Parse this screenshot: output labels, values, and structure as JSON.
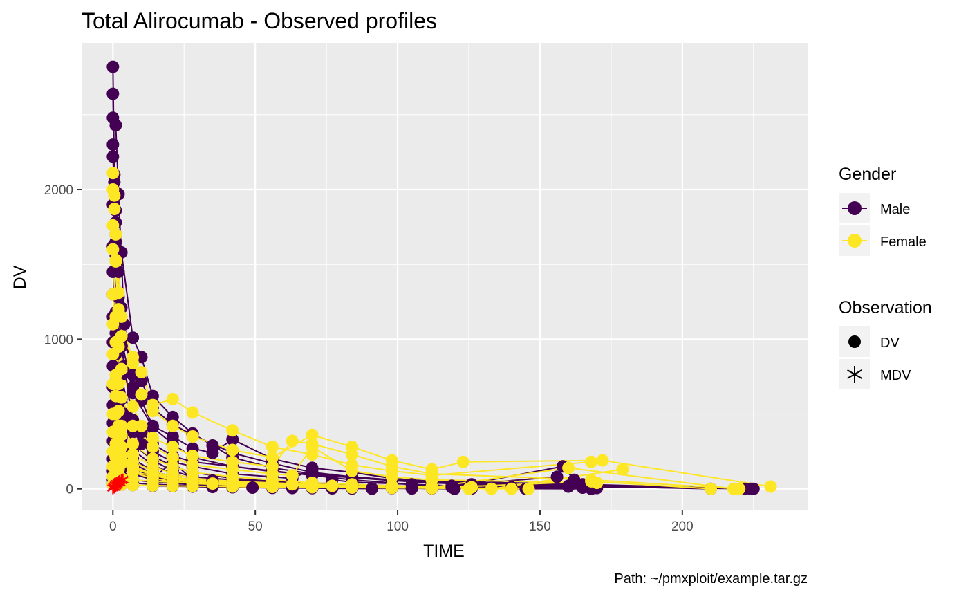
{
  "chart_data": {
    "type": "line",
    "title": "Total Alirocumab - Observed profiles",
    "xlabel": "TIME",
    "ylabel": "DV",
    "caption": "Path: ~/pmxploit/example.tar.gz",
    "xlim": [
      -11,
      244
    ],
    "ylim": [
      -140,
      2980
    ],
    "x_ticks": [
      0,
      50,
      100,
      150,
      200
    ],
    "y_ticks": [
      0,
      1000,
      2000
    ],
    "x_tick_labels": [
      "0",
      "50",
      "100",
      "150",
      "200"
    ],
    "y_tick_labels": [
      "0",
      "1000",
      "2000"
    ],
    "grid": true,
    "legend_position": "right",
    "colors": {
      "Male": "#440154",
      "Female": "#fde725",
      "MDV": "#ff0000"
    },
    "legend": {
      "color_title": "Gender",
      "color_entries": [
        "Male",
        "Female"
      ],
      "shape_title": "Observation",
      "shape_entries": [
        "DV",
        "MDV"
      ]
    },
    "series": [
      {
        "gender": "Male",
        "x": [
          0,
          0.5,
          1,
          3,
          7,
          14,
          21,
          28,
          42,
          56,
          70,
          84,
          98,
          112,
          168,
          224
        ],
        "y": [
          2820,
          2100,
          1650,
          1000,
          640,
          410,
          300,
          210,
          150,
          115,
          95,
          75,
          55,
          40,
          22,
          0
        ]
      },
      {
        "gender": "Male",
        "x": [
          0,
          0.5,
          1,
          3,
          7,
          10,
          14,
          21,
          28,
          35,
          42,
          56,
          70,
          84,
          98,
          112,
          165,
          222
        ],
        "y": [
          2640,
          2050,
          1780,
          1580,
          1010,
          880,
          620,
          480,
          370,
          290,
          210,
          140,
          100,
          80,
          60,
          45,
          30,
          0
        ]
      },
      {
        "gender": "Male",
        "x": [
          0,
          1,
          2,
          4,
          7,
          10,
          14,
          21,
          28,
          42,
          56,
          70,
          84,
          98,
          112,
          126,
          160,
          210
        ],
        "y": [
          2480,
          2430,
          1970,
          1100,
          760,
          720,
          540,
          430,
          360,
          240,
          170,
          110,
          80,
          60,
          40,
          30,
          20,
          0
        ]
      },
      {
        "gender": "Male",
        "x": [
          0,
          1,
          2,
          3,
          7,
          10,
          14,
          21,
          28,
          35,
          42,
          56,
          70,
          84,
          98,
          112,
          168
        ],
        "y": [
          2300,
          1860,
          1450,
          1210,
          680,
          590,
          420,
          350,
          270,
          240,
          330,
          200,
          140,
          110,
          70,
          50,
          30
        ]
      },
      {
        "gender": "Male",
        "x": [
          0,
          1,
          2,
          3,
          7,
          10,
          14,
          21,
          28,
          42,
          56,
          70,
          84,
          98,
          112,
          140,
          170
        ],
        "y": [
          2220,
          1700,
          1280,
          950,
          460,
          380,
          300,
          220,
          180,
          150,
          120,
          90,
          60,
          40,
          20,
          10,
          5
        ]
      },
      {
        "gender": "Male",
        "x": [
          0,
          1,
          2,
          4,
          7,
          10,
          14,
          21,
          28,
          42,
          56,
          63,
          70,
          77,
          84,
          105,
          119,
          160,
          225
        ],
        "y": [
          1900,
          1560,
          1200,
          820,
          420,
          300,
          250,
          180,
          150,
          100,
          80,
          70,
          130,
          60,
          45,
          30,
          20,
          15,
          0
        ]
      },
      {
        "gender": "Male",
        "x": [
          0,
          1,
          2,
          3,
          7,
          14,
          21,
          28,
          42,
          56,
          70,
          84,
          98,
          112,
          126,
          165
        ],
        "y": [
          1620,
          1300,
          1020,
          760,
          380,
          220,
          150,
          110,
          70,
          50,
          40,
          30,
          20,
          15,
          10,
          8
        ]
      },
      {
        "gender": "Male",
        "x": [
          0,
          1,
          2,
          3,
          7,
          14,
          21,
          28,
          42,
          56,
          70,
          84,
          98,
          112
        ],
        "y": [
          1450,
          1180,
          930,
          600,
          300,
          190,
          120,
          80,
          60,
          45,
          35,
          25,
          18,
          12
        ]
      },
      {
        "gender": "Male",
        "x": [
          0,
          1,
          2,
          4,
          7,
          14,
          21,
          28,
          35,
          42,
          56,
          70,
          84,
          112,
          156
        ],
        "y": [
          1300,
          1040,
          760,
          500,
          260,
          160,
          100,
          70,
          55,
          45,
          35,
          25,
          20,
          12,
          80
        ]
      },
      {
        "gender": "Male",
        "x": [
          0,
          1,
          2,
          3,
          7,
          14,
          21,
          28,
          42,
          56,
          70,
          84,
          98,
          119,
          158,
          162
        ],
        "y": [
          1150,
          900,
          650,
          420,
          200,
          120,
          80,
          60,
          40,
          30,
          25,
          20,
          15,
          10,
          150,
          60
        ]
      },
      {
        "gender": "Male",
        "x": [
          0,
          1,
          2,
          3,
          7,
          14,
          21,
          28,
          42,
          56,
          70,
          84,
          98,
          112
        ],
        "y": [
          980,
          720,
          540,
          340,
          170,
          100,
          60,
          40,
          30,
          20,
          15,
          12,
          10,
          5
        ]
      },
      {
        "gender": "Male",
        "x": [
          0,
          1,
          2,
          3,
          7,
          14,
          21,
          28,
          42,
          56,
          70,
          77,
          84,
          91,
          105
        ],
        "y": [
          820,
          620,
          450,
          300,
          140,
          80,
          50,
          35,
          25,
          18,
          12,
          8,
          5,
          3,
          2
        ]
      },
      {
        "gender": "Male",
        "x": [
          0,
          1,
          2,
          3,
          7,
          14,
          21,
          28,
          42,
          56,
          70,
          84,
          98,
          112,
          145
        ],
        "y": [
          680,
          520,
          380,
          250,
          120,
          70,
          180,
          60,
          40,
          30,
          20,
          15,
          10,
          5,
          0
        ]
      },
      {
        "gender": "Male",
        "x": [
          0,
          1,
          2,
          3,
          7,
          14,
          21,
          28,
          42,
          56,
          70,
          84,
          98,
          112,
          126,
          168
        ],
        "y": [
          560,
          420,
          320,
          200,
          100,
          60,
          40,
          25,
          20,
          15,
          10,
          8,
          6,
          4,
          2,
          0
        ]
      },
      {
        "gender": "Male",
        "x": [
          0,
          1,
          3,
          7,
          14,
          21,
          28,
          42,
          56,
          70,
          84,
          98
        ],
        "y": [
          440,
          350,
          260,
          180,
          120,
          80,
          50,
          35,
          25,
          18,
          12,
          8
        ]
      },
      {
        "gender": "Male",
        "x": [
          0,
          1,
          3,
          7,
          14,
          21,
          28,
          42,
          56,
          70,
          84,
          98,
          112
        ],
        "y": [
          320,
          260,
          190,
          130,
          90,
          60,
          40,
          30,
          20,
          14,
          10,
          6,
          4
        ]
      },
      {
        "gender": "Male",
        "x": [
          0,
          1,
          3,
          7,
          14,
          21,
          28,
          35,
          42,
          56,
          63,
          70,
          84,
          98,
          120
        ],
        "y": [
          200,
          170,
          140,
          110,
          80,
          60,
          45,
          35,
          28,
          20,
          15,
          10,
          8,
          5,
          0
        ]
      },
      {
        "gender": "Male",
        "x": [
          0,
          1,
          3,
          7,
          14,
          28,
          42,
          56,
          70,
          84,
          98,
          112
        ],
        "y": [
          120,
          100,
          80,
          60,
          45,
          30,
          20,
          15,
          10,
          8,
          5,
          3
        ]
      },
      {
        "gender": "Male",
        "x": [
          0,
          2,
          7,
          14,
          21,
          28,
          42,
          56,
          70,
          84,
          98,
          112,
          140,
          168
        ],
        "y": [
          60,
          50,
          40,
          30,
          25,
          20,
          15,
          10,
          8,
          6,
          4,
          3,
          2,
          1
        ]
      },
      {
        "gender": "Male",
        "x": [
          0,
          3,
          7,
          14,
          21,
          28,
          35,
          42,
          49,
          56,
          63,
          70,
          77,
          84,
          91
        ],
        "y": [
          30,
          28,
          25,
          20,
          18,
          15,
          12,
          10,
          8,
          6,
          5,
          4,
          3,
          2,
          1
        ]
      },
      {
        "gender": "Female",
        "x": [
          0,
          0.5,
          1,
          3,
          7,
          10,
          14,
          21,
          28,
          42,
          56,
          70,
          84,
          98,
          112,
          168
        ],
        "y": [
          2110,
          1960,
          1700,
          1150,
          840,
          780,
          560,
          600,
          510,
          390,
          280,
          230,
          160,
          120,
          90,
          180
        ]
      },
      {
        "gender": "Female",
        "x": [
          0,
          0.5,
          1,
          2,
          3,
          7,
          10,
          14,
          21,
          28,
          42,
          56,
          70,
          84,
          98,
          112,
          123,
          172,
          231
        ],
        "y": [
          2000,
          1870,
          1530,
          1310,
          1020,
          880,
          630,
          520,
          420,
          350,
          260,
          210,
          360,
          280,
          190,
          130,
          180,
          190,
          15
        ]
      },
      {
        "gender": "Female",
        "x": [
          0,
          1,
          2,
          3,
          7,
          10,
          14,
          21,
          28,
          42,
          56,
          63,
          70,
          84,
          98,
          112,
          168,
          220
        ],
        "y": [
          1760,
          1520,
          1200,
          800,
          550,
          420,
          340,
          280,
          220,
          180,
          150,
          320,
          300,
          230,
          150,
          100,
          60,
          0
        ]
      },
      {
        "gender": "Female",
        "x": [
          0,
          1,
          2,
          3,
          7,
          14,
          21,
          28,
          42,
          56,
          63,
          70,
          84,
          98,
          112,
          170
        ],
        "y": [
          1600,
          1150,
          950,
          610,
          420,
          280,
          210,
          160,
          130,
          100,
          90,
          280,
          120,
          80,
          60,
          40
        ]
      },
      {
        "gender": "Female",
        "x": [
          0,
          1,
          2,
          3,
          7,
          14,
          21,
          28,
          42,
          56,
          70,
          84,
          98,
          112,
          126
        ],
        "y": [
          1300,
          980,
          700,
          420,
          300,
          200,
          150,
          110,
          80,
          60,
          40,
          30,
          20,
          15,
          10
        ]
      },
      {
        "gender": "Female",
        "x": [
          0,
          1,
          2,
          3,
          7,
          14,
          21,
          28,
          42,
          56,
          70,
          84,
          112,
          160,
          218
        ],
        "y": [
          1100,
          760,
          520,
          360,
          230,
          150,
          100,
          70,
          50,
          40,
          30,
          20,
          10,
          140,
          0
        ]
      },
      {
        "gender": "Female",
        "x": [
          0,
          1,
          2,
          3,
          7,
          14,
          21,
          28,
          42,
          56,
          70,
          84,
          98,
          112,
          133,
          179
        ],
        "y": [
          900,
          620,
          420,
          280,
          180,
          120,
          80,
          60,
          40,
          30,
          20,
          15,
          10,
          5,
          0,
          130
        ]
      },
      {
        "gender": "Female",
        "x": [
          0,
          1,
          2,
          3,
          7,
          14,
          21,
          28,
          42,
          56,
          70,
          84,
          98,
          112,
          140
        ],
        "y": [
          700,
          500,
          340,
          220,
          140,
          90,
          60,
          45,
          30,
          20,
          15,
          10,
          8,
          5,
          0
        ]
      },
      {
        "gender": "Female",
        "x": [
          0,
          1,
          2,
          3,
          7,
          14,
          21,
          28,
          42,
          56,
          70,
          84,
          98,
          112
        ],
        "y": [
          500,
          380,
          280,
          180,
          110,
          70,
          50,
          35,
          25,
          18,
          12,
          10,
          6,
          4
        ]
      },
      {
        "gender": "Female",
        "x": [
          0,
          1,
          3,
          7,
          14,
          21,
          28,
          42,
          56,
          70,
          84,
          98,
          112,
          125
        ],
        "y": [
          380,
          300,
          220,
          150,
          100,
          70,
          50,
          35,
          25,
          18,
          14,
          10,
          6,
          0
        ]
      },
      {
        "gender": "Female",
        "x": [
          0,
          1,
          3,
          7,
          14,
          21,
          28,
          42,
          56,
          63,
          70,
          77,
          84,
          98
        ],
        "y": [
          250,
          210,
          170,
          130,
          100,
          80,
          60,
          45,
          35,
          30,
          25,
          20,
          15,
          10
        ]
      },
      {
        "gender": "Female",
        "x": [
          0,
          2,
          7,
          14,
          21,
          28,
          42,
          56,
          70,
          84,
          98,
          112,
          146
        ],
        "y": [
          150,
          130,
          110,
          90,
          70,
          55,
          40,
          30,
          22,
          16,
          12,
          8,
          0
        ]
      },
      {
        "gender": "Female",
        "x": [
          0,
          3,
          7,
          14,
          21,
          28,
          35,
          42,
          56,
          70,
          84,
          98,
          112,
          168,
          210
        ],
        "y": [
          80,
          70,
          60,
          50,
          45,
          40,
          35,
          30,
          25,
          20,
          15,
          10,
          5,
          50,
          0
        ]
      },
      {
        "gender": "Female",
        "x": [
          0,
          3,
          7,
          14,
          21,
          28,
          42,
          56,
          70,
          84,
          98,
          112
        ],
        "y": [
          30,
          28,
          25,
          22,
          20,
          18,
          15,
          12,
          10,
          8,
          6,
          4
        ]
      }
    ],
    "mdv_points": {
      "x": [
        0,
        0.3,
        0.5,
        0.8,
        1,
        1.2,
        1.5,
        1.8,
        2,
        2.3,
        2.5,
        3,
        3.5
      ],
      "y": [
        5,
        15,
        10,
        25,
        20,
        35,
        30,
        40,
        45,
        50,
        40,
        55,
        60
      ]
    }
  }
}
